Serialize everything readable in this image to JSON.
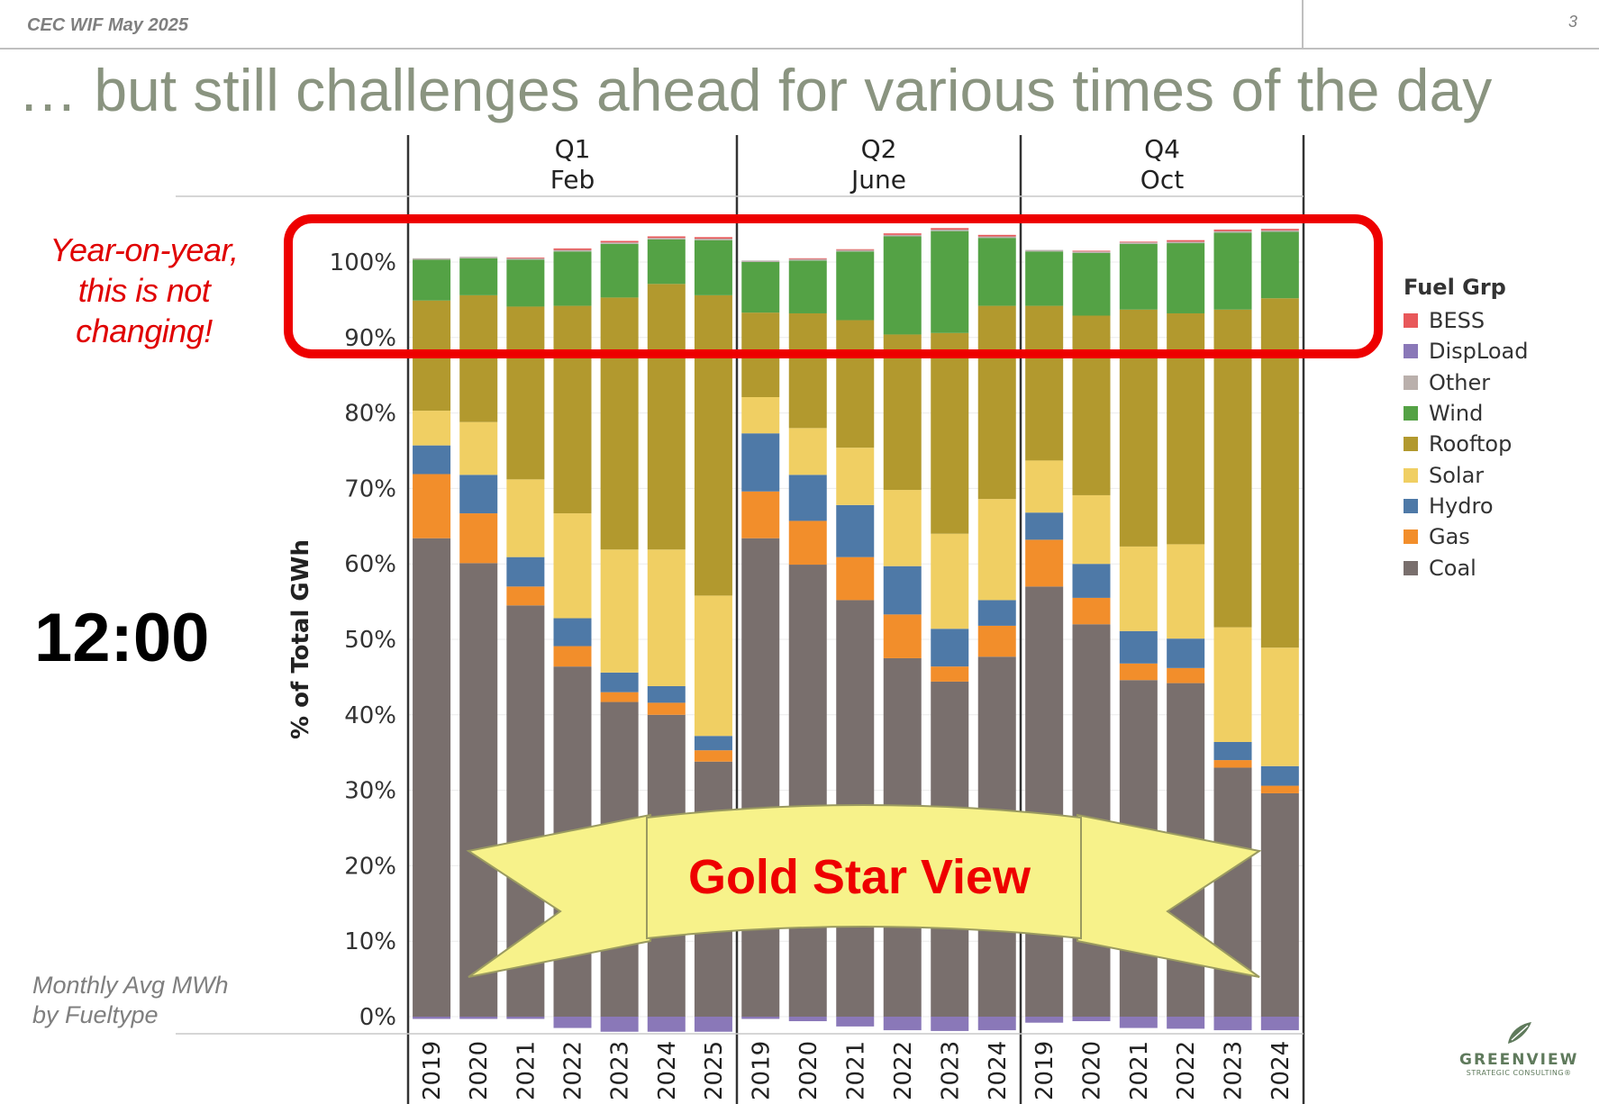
{
  "header": {
    "source": "CEC WIF May 2025",
    "page_number": "3"
  },
  "title": "… but still challenges ahead for various times of the day",
  "callouts": {
    "yoy_line1": "Year-on-year,",
    "yoy_line2": "this is not",
    "yoy_line3": "changing!",
    "time_label": "12:00",
    "monthly_line1": "Monthly Avg MWh",
    "monthly_line2": "by Fueltype",
    "gold_star": "Gold Star View"
  },
  "logo": {
    "name": "GREENVIEW",
    "tagline": "STRATEGIC CONSULTING®"
  },
  "colors": {
    "BESS": "#e8585a",
    "DispLoad": "#8a78b8",
    "Other": "#bab0ac",
    "Wind": "#54a245",
    "Rooftop": "#b2992e",
    "Solar": "#f0cf63",
    "Hydro": "#4e79a7",
    "Gas": "#f28e2b",
    "Coal": "#796f6d",
    "highlight_box": "#ee0000",
    "ribbon": "#f7f28a"
  },
  "legend": {
    "title": "Fuel Grp",
    "items": [
      {
        "label": "BESS",
        "color": "#e8585a"
      },
      {
        "label": "DispLoad",
        "color": "#8a78b8"
      },
      {
        "label": "Other",
        "color": "#bab0ac"
      },
      {
        "label": "Wind",
        "color": "#54a245"
      },
      {
        "label": "Rooftop",
        "color": "#b2992e"
      },
      {
        "label": "Solar",
        "color": "#f0cf63"
      },
      {
        "label": "Hydro",
        "color": "#4e79a7"
      },
      {
        "label": "Gas",
        "color": "#f28e2b"
      },
      {
        "label": "Coal",
        "color": "#796f6d"
      }
    ]
  },
  "chart_data": {
    "type": "bar",
    "stacked": true,
    "ylabel": "% of Total GWh",
    "ylim": [
      -2,
      105
    ],
    "yticks": [
      0,
      10,
      20,
      30,
      40,
      50,
      60,
      70,
      80,
      90,
      100
    ],
    "ytick_labels": [
      "0%",
      "10%",
      "20%",
      "30%",
      "40%",
      "50%",
      "60%",
      "70%",
      "80%",
      "90%",
      "100%"
    ],
    "grid": true,
    "legend_position": "right",
    "series_order": [
      "Coal",
      "Gas",
      "Hydro",
      "Solar",
      "Rooftop",
      "Wind",
      "Other",
      "BESS"
    ],
    "panels": [
      {
        "quarter": "Q1",
        "month": "Feb",
        "years": [
          "2019",
          "2020",
          "2021",
          "2022",
          "2023",
          "2024",
          "2025"
        ],
        "values": {
          "DispLoad": [
            -0.3,
            -0.3,
            -0.3,
            -1.5,
            -2.0,
            -2.0,
            -2.0
          ],
          "Coal": [
            63.4,
            60.1,
            54.5,
            46.4,
            41.7,
            40.0,
            33.8
          ],
          "Gas": [
            8.5,
            6.6,
            2.5,
            2.7,
            1.3,
            1.6,
            1.5
          ],
          "Hydro": [
            3.8,
            5.1,
            3.9,
            3.7,
            2.6,
            2.2,
            1.9
          ],
          "Solar": [
            4.6,
            7.0,
            10.3,
            13.9,
            16.3,
            18.1,
            18.6
          ],
          "Rooftop": [
            14.6,
            16.8,
            22.9,
            27.5,
            33.4,
            35.2,
            39.8
          ],
          "Wind": [
            5.4,
            4.9,
            6.2,
            7.2,
            7.1,
            5.9,
            7.3
          ],
          "Other": [
            0.2,
            0.2,
            0.2,
            0.2,
            0.2,
            0.2,
            0.2
          ],
          "BESS": [
            0.0,
            0.0,
            0.1,
            0.2,
            0.2,
            0.2,
            0.2
          ]
        }
      },
      {
        "quarter": "Q2",
        "month": "June",
        "years": [
          "2019",
          "2020",
          "2021",
          "2022",
          "2023",
          "2024"
        ],
        "values": {
          "DispLoad": [
            -0.3,
            -0.6,
            -1.3,
            -1.8,
            -1.9,
            -1.8
          ],
          "Coal": [
            63.4,
            59.9,
            55.2,
            47.5,
            44.4,
            47.7
          ],
          "Gas": [
            6.2,
            5.8,
            5.7,
            5.8,
            2.0,
            4.1
          ],
          "Hydro": [
            7.7,
            6.1,
            6.9,
            6.4,
            5.0,
            3.4
          ],
          "Solar": [
            4.8,
            6.2,
            7.6,
            10.1,
            12.6,
            13.4
          ],
          "Rooftop": [
            11.2,
            15.2,
            16.9,
            20.6,
            26.6,
            25.6
          ],
          "Wind": [
            6.7,
            7.0,
            9.1,
            13.0,
            13.5,
            9.0
          ],
          "Other": [
            0.2,
            0.2,
            0.2,
            0.2,
            0.2,
            0.2
          ],
          "BESS": [
            0.0,
            0.1,
            0.1,
            0.2,
            0.2,
            0.2
          ]
        }
      },
      {
        "quarter": "Q4",
        "month": "Oct",
        "years": [
          "2019",
          "2020",
          "2021",
          "2022",
          "2023",
          "2024"
        ],
        "values": {
          "DispLoad": [
            -0.8,
            -0.6,
            -1.5,
            -1.6,
            -1.8,
            -1.8
          ],
          "Coal": [
            57.0,
            52.0,
            44.6,
            44.2,
            33.0,
            29.6
          ],
          "Gas": [
            6.2,
            3.5,
            2.2,
            2.0,
            1.0,
            1.0
          ],
          "Hydro": [
            3.6,
            4.5,
            4.3,
            3.9,
            2.4,
            2.6
          ],
          "Solar": [
            6.9,
            9.1,
            11.2,
            12.5,
            15.2,
            15.7
          ],
          "Rooftop": [
            20.5,
            23.8,
            31.4,
            30.6,
            42.1,
            46.3
          ],
          "Wind": [
            7.2,
            8.3,
            8.7,
            9.3,
            10.2,
            8.8
          ],
          "Other": [
            0.2,
            0.2,
            0.2,
            0.2,
            0.2,
            0.2
          ],
          "BESS": [
            0.0,
            0.1,
            0.1,
            0.2,
            0.2,
            0.2
          ]
        }
      }
    ]
  }
}
